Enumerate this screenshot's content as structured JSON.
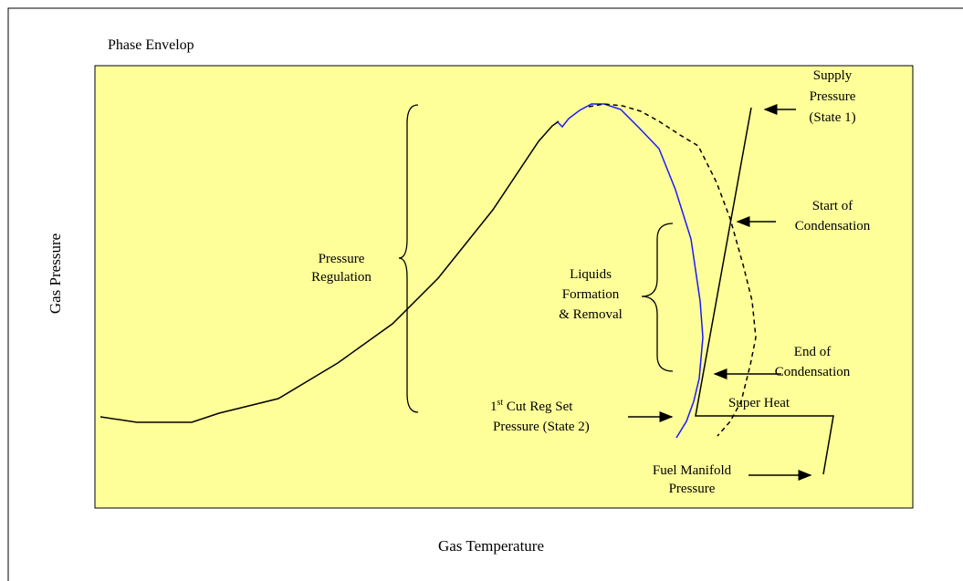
{
  "title": "Phase Envelop",
  "y_axis_label": "Gas Pressure",
  "x_axis_label": "Gas Temperature",
  "labels": {
    "pressure_regulation": [
      "Pressure",
      "Regulation"
    ],
    "liquids": [
      "Liquids",
      "Formation",
      "& Removal"
    ],
    "supply": [
      "Supply",
      "Pressure",
      "(State 1)"
    ],
    "start": [
      "Start of",
      "Condensation"
    ],
    "end": [
      "End of",
      "Condensation"
    ],
    "first_cut": {
      "number": "1",
      "suffix": "st",
      "rest": " Cut Reg Set",
      "line2": "Pressure (State 2)"
    },
    "super_heat": "Super Heat",
    "fuel": [
      "Fuel Manifold",
      "Pressure"
    ]
  }
}
